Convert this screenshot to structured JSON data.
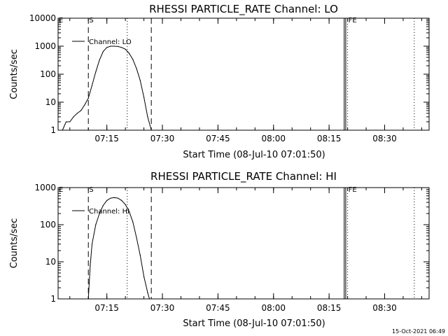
{
  "footer": {
    "timestamp": "15-Oct-2021 06:49"
  },
  "chart_data": [
    {
      "type": "line",
      "title": "RHESSI PARTICLE_RATE Channel: LO",
      "xlabel": "Start Time (08-Jul-10 07:01:50)",
      "ylabel": "Counts/sec",
      "yscale": "log",
      "ylim": [
        1,
        10000
      ],
      "y_ticks": [
        "1",
        "10",
        "100",
        "1000",
        "10000"
      ],
      "x_ticks": [
        "07:15",
        "07:30",
        "07:45",
        "08:00",
        "08:15",
        "08:30"
      ],
      "xlim": [
        "07:01:50",
        "08:42:00"
      ],
      "legend": "Channel: LO",
      "legend_position": "top-left",
      "markers": [
        {
          "label": "E",
          "time": "07:01:50",
          "style": "solid"
        },
        {
          "label": "S",
          "time": "07:10:00",
          "style": "dashed"
        },
        {
          "label": "",
          "time": "07:20:30",
          "style": "dotted"
        },
        {
          "label": "",
          "time": "07:27:00",
          "style": "dashed"
        },
        {
          "label": "",
          "time": "08:19:05",
          "style": "solid"
        },
        {
          "label": "",
          "time": "08:19:30",
          "style": "solid"
        },
        {
          "label": "FE",
          "time": "08:20:00",
          "style": "dotted"
        },
        {
          "label": "",
          "time": "08:38:00",
          "style": "dotted"
        }
      ],
      "series": [
        {
          "name": "Channel: LO",
          "x": [
            "07:03:00",
            "07:04:00",
            "07:05:00",
            "07:06:00",
            "07:07:00",
            "07:08:00",
            "07:09:00",
            "07:10:00",
            "07:11:00",
            "07:12:00",
            "07:13:00",
            "07:14:00",
            "07:15:00",
            "07:16:00",
            "07:17:00",
            "07:18:00",
            "07:19:00",
            "07:20:00",
            "07:21:00",
            "07:22:00",
            "07:23:00",
            "07:24:00",
            "07:25:00",
            "07:26:00",
            "07:27:00"
          ],
          "y": [
            1,
            2,
            2,
            3,
            4,
            5,
            8,
            14,
            40,
            120,
            320,
            650,
            900,
            1000,
            1000,
            980,
            900,
            780,
            560,
            340,
            160,
            60,
            15,
            3,
            1
          ]
        }
      ]
    },
    {
      "type": "line",
      "title": "RHESSI PARTICLE_RATE Channel: HI",
      "xlabel": "Start Time (08-Jul-10 07:01:50)",
      "ylabel": "Counts/sec",
      "yscale": "log",
      "ylim": [
        1,
        1000
      ],
      "y_ticks": [
        "1",
        "10",
        "100",
        "1000"
      ],
      "x_ticks": [
        "07:15",
        "07:30",
        "07:45",
        "08:00",
        "08:15",
        "08:30"
      ],
      "xlim": [
        "07:01:50",
        "08:42:00"
      ],
      "legend": "Channel: HI",
      "legend_position": "top-left",
      "markers": [
        {
          "label": "E",
          "time": "07:01:50",
          "style": "solid"
        },
        {
          "label": "S",
          "time": "07:10:00",
          "style": "dashed"
        },
        {
          "label": "",
          "time": "07:20:30",
          "style": "dotted"
        },
        {
          "label": "",
          "time": "07:27:00",
          "style": "dashed"
        },
        {
          "label": "",
          "time": "08:19:05",
          "style": "solid"
        },
        {
          "label": "",
          "time": "08:19:30",
          "style": "solid"
        },
        {
          "label": "FE",
          "time": "08:20:00",
          "style": "dotted"
        },
        {
          "label": "",
          "time": "08:38:00",
          "style": "dotted"
        }
      ],
      "series": [
        {
          "name": "Channel: HI",
          "x": [
            "07:10:00",
            "07:10:30",
            "07:11:00",
            "07:12:00",
            "07:13:00",
            "07:14:00",
            "07:15:00",
            "07:16:00",
            "07:17:00",
            "07:18:00",
            "07:19:00",
            "07:20:00",
            "07:21:00",
            "07:22:00",
            "07:23:00",
            "07:24:00",
            "07:25:00",
            "07:26:00",
            "07:26:30"
          ],
          "y": [
            1,
            8,
            30,
            100,
            200,
            330,
            450,
            520,
            540,
            520,
            450,
            350,
            230,
            120,
            45,
            15,
            4,
            1.5,
            1
          ]
        }
      ]
    }
  ]
}
